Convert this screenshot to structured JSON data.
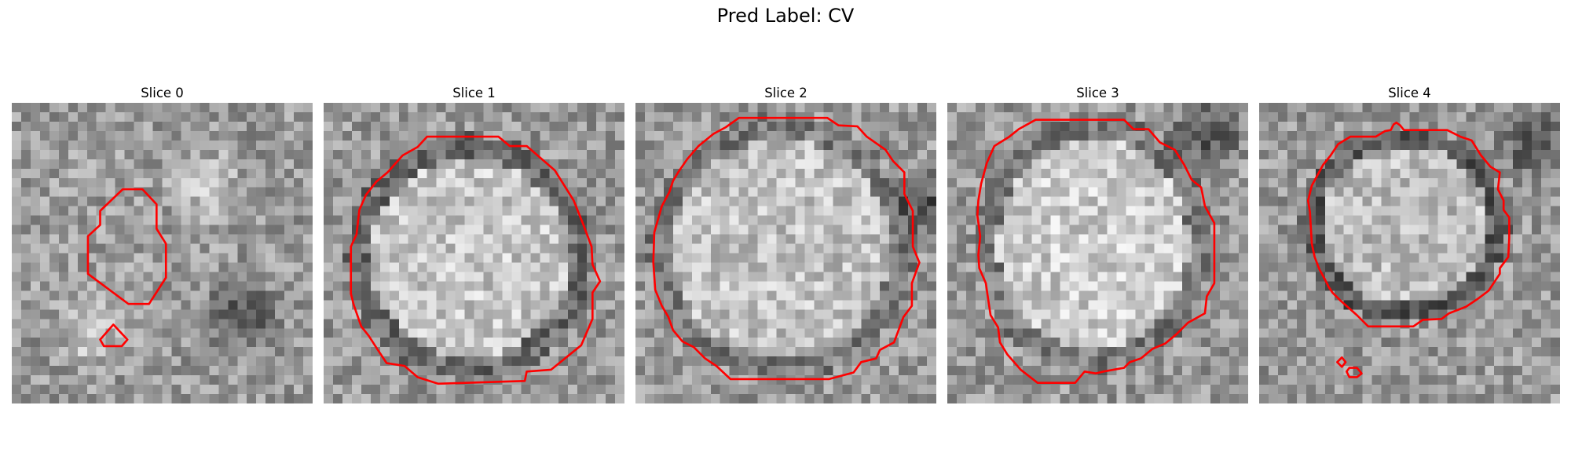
{
  "figure": {
    "title": "Pred Label: CV",
    "contour_color": "#ff0000"
  },
  "panels": [
    {
      "label": "Slice 0",
      "seed": 11,
      "center_brightness": 0.62
    },
    {
      "label": "Slice 1",
      "seed": 23,
      "center_brightness": 0.78
    },
    {
      "label": "Slice 2",
      "seed": 37,
      "center_brightness": 0.76
    },
    {
      "label": "Slice 3",
      "seed": 41,
      "center_brightness": 0.8
    },
    {
      "label": "Slice 4",
      "seed": 53,
      "center_brightness": 0.74
    }
  ]
}
